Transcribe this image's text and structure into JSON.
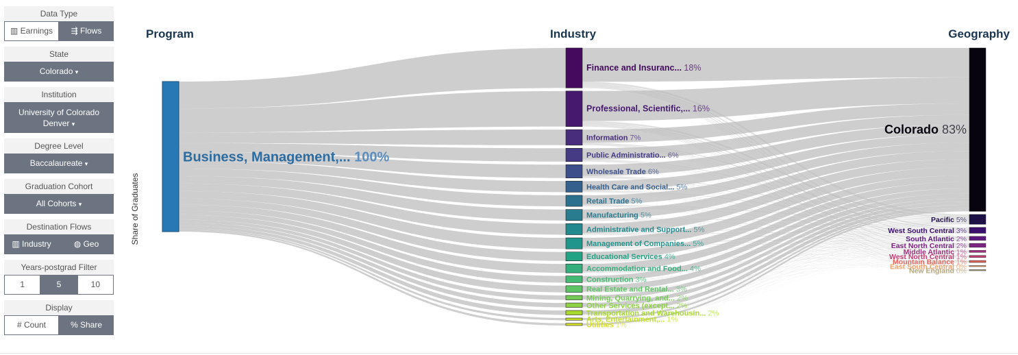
{
  "sidebar": {
    "data_type": {
      "title": "Data Type",
      "earnings": "Earnings",
      "flows": "Flows",
      "earnings_icon": "bar-chart-icon",
      "flows_icon": "flow-icon"
    },
    "state": {
      "title": "State",
      "value": "Colorado"
    },
    "institution": {
      "title": "Institution",
      "value_line1": "University of Colorado",
      "value_line2": "Denver"
    },
    "degree_level": {
      "title": "Degree Level",
      "value": "Baccalaureate"
    },
    "graduation_cohort": {
      "title": "Graduation Cohort",
      "value": "All Cohorts"
    },
    "destination_flows": {
      "title": "Destination Flows",
      "industry": "Industry",
      "geo": "Geo",
      "industry_icon": "bar-chart-icon",
      "geo_icon": "globe-icon"
    },
    "years_filter": {
      "title": "Years-postgrad Filter",
      "options": [
        "1",
        "5",
        "10"
      ],
      "selected": "5"
    },
    "display": {
      "title": "Display",
      "count": "# Count",
      "share": "Share",
      "share_icon": "percent-icon"
    }
  },
  "chart_data": {
    "type": "sankey",
    "column_headers": [
      "Program",
      "Industry",
      "Geography"
    ],
    "ylabel": "Share of Graduates",
    "program": [
      {
        "name": "Business, Management,...",
        "pct": 100,
        "color": "#2878b5"
      }
    ],
    "industries": [
      {
        "name": "Finance and Insuranc...",
        "pct": 18,
        "color": "#430a5d"
      },
      {
        "name": "Professional, Scientific,...",
        "pct": 16,
        "color": "#46186e"
      },
      {
        "name": "Information",
        "pct": 7,
        "color": "#472d7b"
      },
      {
        "name": "Public Administratio...",
        "pct": 6,
        "color": "#443b84"
      },
      {
        "name": "Wholesale Trade",
        "pct": 6,
        "color": "#3c4f8a"
      },
      {
        "name": "Health Care and Social...",
        "pct": 5,
        "color": "#355f8d"
      },
      {
        "name": "Retail Trade",
        "pct": 5,
        "color": "#2d708e"
      },
      {
        "name": "Manufacturing",
        "pct": 5,
        "color": "#287c8e"
      },
      {
        "name": "Administrative and Support...",
        "pct": 5,
        "color": "#22898e"
      },
      {
        "name": "Management of Companies...",
        "pct": 5,
        "color": "#20958b"
      },
      {
        "name": "Educational Services",
        "pct": 4,
        "color": "#24a384"
      },
      {
        "name": "Accommodation and Food...",
        "pct": 4,
        "color": "#33ae7c"
      },
      {
        "name": "Construction",
        "pct": 3,
        "color": "#44b972"
      },
      {
        "name": "Real Estate and Rental...",
        "pct": 3,
        "color": "#5ec365"
      },
      {
        "name": "Mining, Quarrying, and...",
        "pct": 2,
        "color": "#75cb55"
      },
      {
        "name": "Other Services (except...",
        "pct": 2,
        "color": "#8fd244"
      },
      {
        "name": "Transportation and Warehousin...",
        "pct": 2,
        "color": "#a8d92f"
      },
      {
        "name": "Arts, Entertainment,...",
        "pct": 1,
        "color": "#c2df23"
      },
      {
        "name": "Utilities",
        "pct": 1,
        "color": "#d6e020"
      }
    ],
    "geographies": [
      {
        "name": "Colorado",
        "pct": 83,
        "color": "#07040f"
      },
      {
        "name": "Pacific",
        "pct": 5,
        "color": "#1d1147"
      },
      {
        "name": "West South Central",
        "pct": 3,
        "color": "#3a0f6e"
      },
      {
        "name": "South Atlantic",
        "pct": 2,
        "color": "#5c187e"
      },
      {
        "name": "East North Central",
        "pct": 2,
        "color": "#7e2482"
      },
      {
        "name": "Middle Atlantic",
        "pct": 1,
        "color": "#a1307e"
      },
      {
        "name": "West North Central",
        "pct": 1,
        "color": "#c53c74"
      },
      {
        "name": "Mountain Balance",
        "pct": 1,
        "color": "#e4645c"
      },
      {
        "name": "East South Central",
        "pct": 0,
        "color": "#f0a06a"
      },
      {
        "name": "New England",
        "pct": 0,
        "color": "#b5a77a"
      }
    ]
  }
}
